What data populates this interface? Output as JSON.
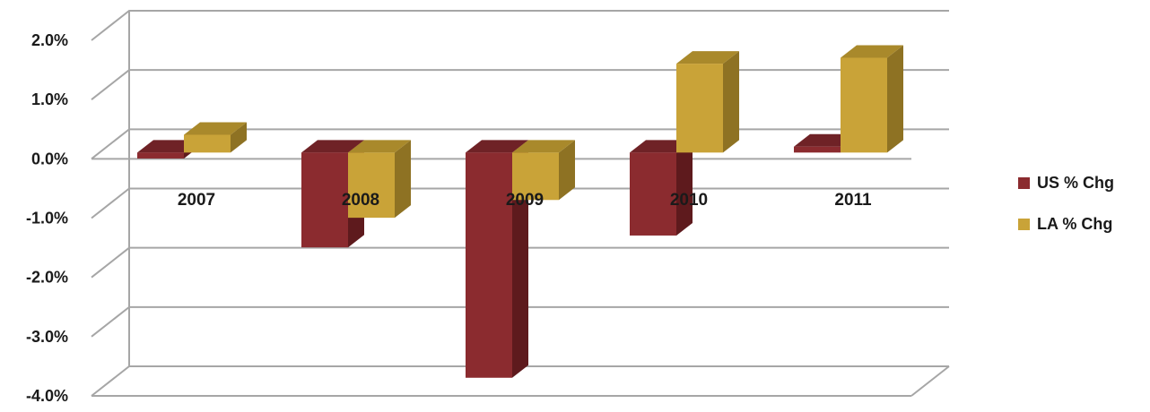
{
  "chart_data": {
    "type": "bar",
    "style": "3d-clustered-column",
    "categories": [
      "2007",
      "2008",
      "2009",
      "2010",
      "2011"
    ],
    "series": [
      {
        "name": "US % Chg",
        "values": [
          -0.1,
          -1.6,
          -3.8,
          -1.4,
          0.1
        ],
        "color": "#8B2B2F",
        "side_color": "#5E1A1D",
        "top_color": "#6F2226"
      },
      {
        "name": "LA % Chg",
        "values": [
          0.3,
          -1.1,
          -0.8,
          1.5,
          1.6
        ],
        "color": "#C9A338",
        "side_color": "#8E7223",
        "top_color": "#A9892B"
      }
    ],
    "ylim": [
      -4.0,
      2.0
    ],
    "yticks": [
      2.0,
      1.0,
      0.0,
      -1.0,
      -2.0,
      -3.0,
      -4.0
    ],
    "ytick_labels": [
      "2.0%",
      "1.0%",
      "0.0%",
      "-1.0%",
      "-2.0%",
      "-3.0%",
      "-4.0%"
    ],
    "grid": true,
    "legend_position": "right",
    "title": "",
    "xlabel": "",
    "ylabel": ""
  }
}
